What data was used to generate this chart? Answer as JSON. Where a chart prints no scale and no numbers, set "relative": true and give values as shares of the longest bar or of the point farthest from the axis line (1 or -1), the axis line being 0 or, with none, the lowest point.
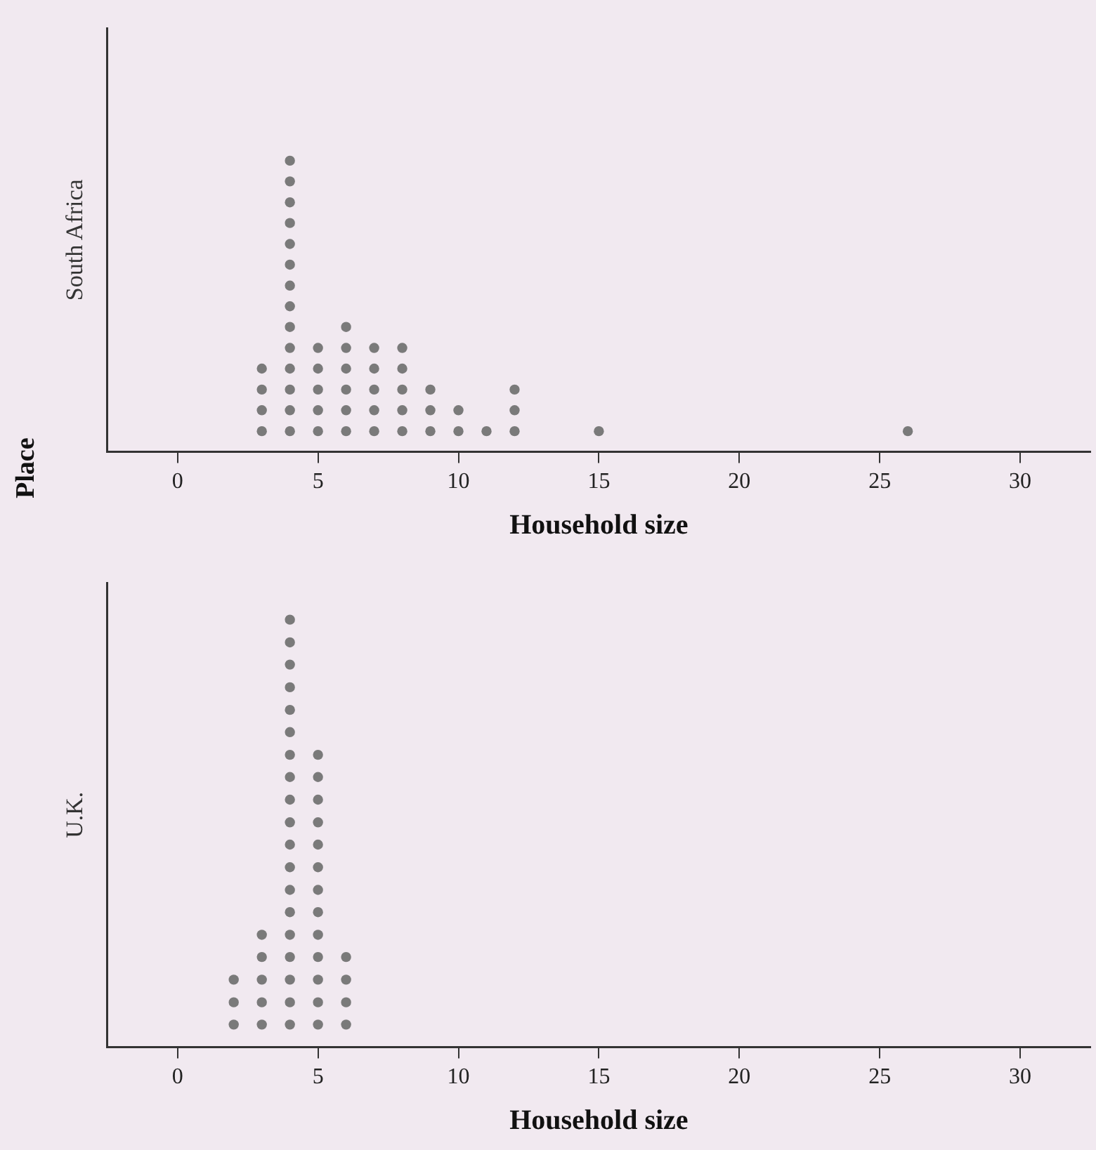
{
  "chart_data": [
    {
      "type": "scatter",
      "annotations": [
        "Place"
      ],
      "ylabel": "South Africa",
      "xlabel": "Household size",
      "xlim": [
        -2.5,
        32.5
      ],
      "xticks": [
        0,
        5,
        10,
        15,
        20,
        25,
        30
      ],
      "relative": true,
      "grid": false,
      "legend": false,
      "marker": "circle",
      "series": [
        {
          "color": "#7a7a7a",
          "x": [
            3,
            3,
            3,
            3,
            4,
            4,
            4,
            4,
            4,
            4,
            4,
            4,
            4,
            4,
            4,
            4,
            4,
            4,
            5,
            5,
            5,
            5,
            5,
            6,
            6,
            6,
            6,
            6,
            6,
            7,
            7,
            7,
            7,
            7,
            8,
            8,
            8,
            8,
            8,
            9,
            9,
            9,
            10,
            10,
            11,
            12,
            12,
            12,
            15,
            26
          ],
          "values": [
            0.071,
            0.143,
            0.214,
            0.286,
            0.071,
            0.143,
            0.214,
            0.286,
            0.357,
            0.429,
            0.5,
            0.571,
            0.643,
            0.714,
            0.786,
            0.857,
            0.929,
            1,
            0.071,
            0.143,
            0.214,
            0.286,
            0.357,
            0.071,
            0.143,
            0.214,
            0.286,
            0.357,
            0.429,
            0.071,
            0.143,
            0.214,
            0.286,
            0.357,
            0.071,
            0.143,
            0.214,
            0.286,
            0.357,
            0.071,
            0.143,
            0.214,
            0.071,
            0.143,
            0.071,
            0.071,
            0.143,
            0.214,
            0.071,
            0.071
          ]
        }
      ]
    },
    {
      "type": "scatter",
      "ylabel": "U.K.",
      "xlabel": "Household size",
      "xlim": [
        -2.5,
        32.5
      ],
      "xticks": [
        0,
        5,
        10,
        15,
        20,
        25,
        30
      ],
      "relative": true,
      "grid": false,
      "legend": false,
      "marker": "circle",
      "series": [
        {
          "color": "#7a7a7a",
          "x": [
            2,
            2,
            2,
            3,
            3,
            3,
            3,
            3,
            4,
            4,
            4,
            4,
            4,
            4,
            4,
            4,
            4,
            4,
            4,
            4,
            4,
            4,
            4,
            4,
            4,
            4,
            4,
            5,
            5,
            5,
            5,
            5,
            5,
            5,
            5,
            5,
            5,
            5,
            5,
            5,
            6,
            6,
            6,
            6
          ],
          "values": [
            0.053,
            0.105,
            0.158,
            0.053,
            0.105,
            0.158,
            0.211,
            0.263,
            0.053,
            0.105,
            0.158,
            0.211,
            0.263,
            0.316,
            0.368,
            0.421,
            0.474,
            0.526,
            0.579,
            0.632,
            0.684,
            0.737,
            0.789,
            0.842,
            0.895,
            0.947,
            1,
            0.053,
            0.105,
            0.158,
            0.211,
            0.263,
            0.316,
            0.368,
            0.421,
            0.474,
            0.526,
            0.579,
            0.632,
            0.684,
            0.053,
            0.105,
            0.158,
            0.211
          ]
        }
      ]
    }
  ]
}
